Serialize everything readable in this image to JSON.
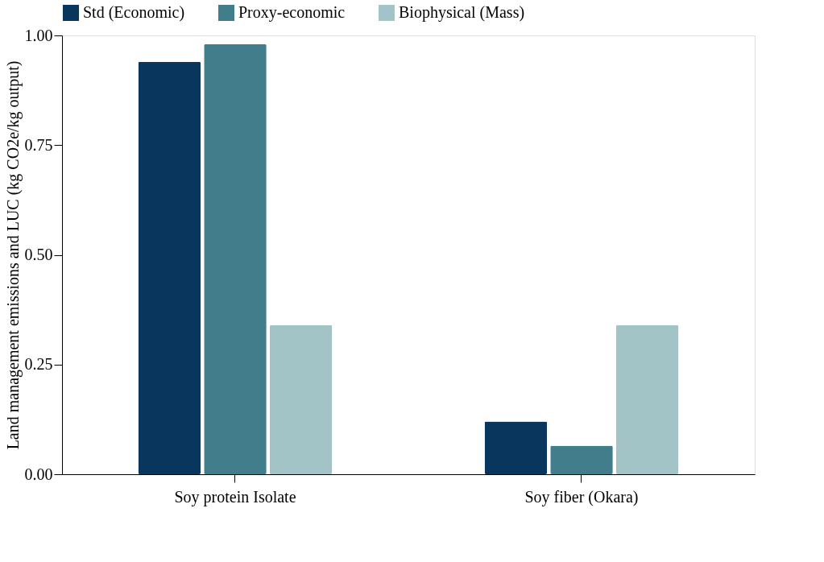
{
  "chart_data": {
    "type": "bar",
    "ylabel": "Land management emissions and LUC (kg CO2e/kg output)",
    "categories": [
      "Soy protein Isolate",
      "Soy fiber (Okara)"
    ],
    "series": [
      {
        "name": "Std (Economic)",
        "color": "#08365c",
        "values": [
          0.94,
          0.12
        ]
      },
      {
        "name": "Proxy-economic",
        "color": "#427d8c",
        "values": [
          0.98,
          0.065
        ]
      },
      {
        "name": "Biophysical (Mass)",
        "color": "#a3c4c7",
        "values": [
          0.34,
          0.34
        ]
      }
    ],
    "ylim": [
      0,
      1.0
    ],
    "yticks": [
      {
        "value": 0,
        "label": "0.00"
      },
      {
        "value": 0.25,
        "label": "0.25"
      },
      {
        "value": 0.5,
        "label": "0.50"
      },
      {
        "value": 0.75,
        "label": "0.75"
      },
      {
        "value": 1.0,
        "label": "1.00"
      }
    ],
    "grid": false,
    "legend": "top"
  }
}
